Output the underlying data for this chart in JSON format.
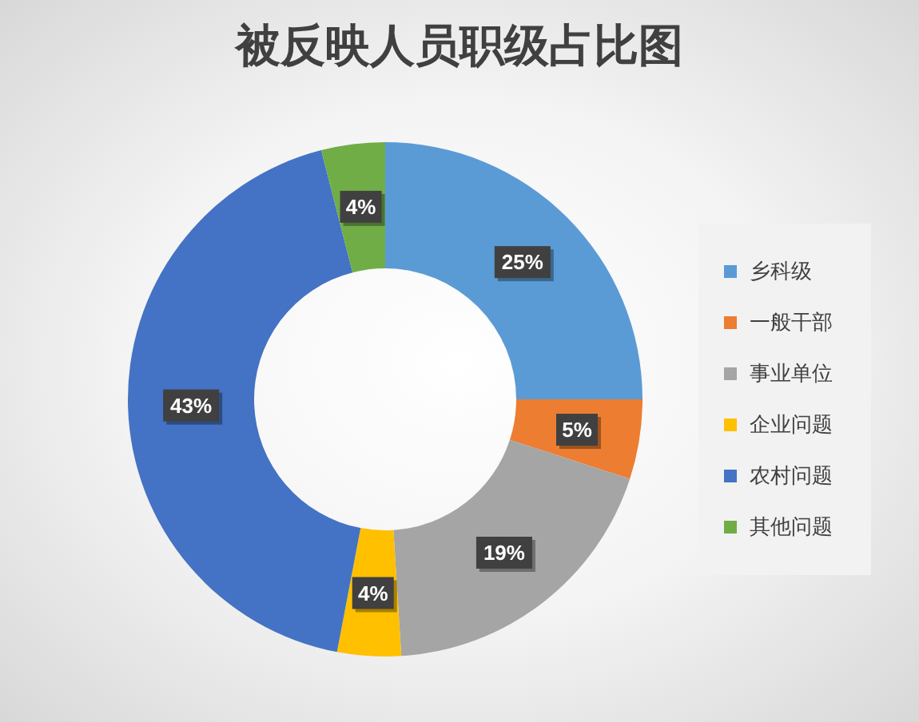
{
  "chart_data": {
    "type": "donut",
    "title": "被反映人员职级占比图",
    "categories": [
      "乡科级",
      "一般干部",
      "事业单位",
      "企业问题",
      "农村问题",
      "其他问题"
    ],
    "values": [
      25,
      5,
      19,
      4,
      43,
      4
    ],
    "value_labels": [
      "25%",
      "5%",
      "19%",
      "4%",
      "43%",
      "4%"
    ],
    "colors": [
      "#5b9bd5",
      "#ed7d31",
      "#a5a5a5",
      "#ffc000",
      "#4472c4",
      "#70ad47"
    ],
    "legend": "right"
  }
}
